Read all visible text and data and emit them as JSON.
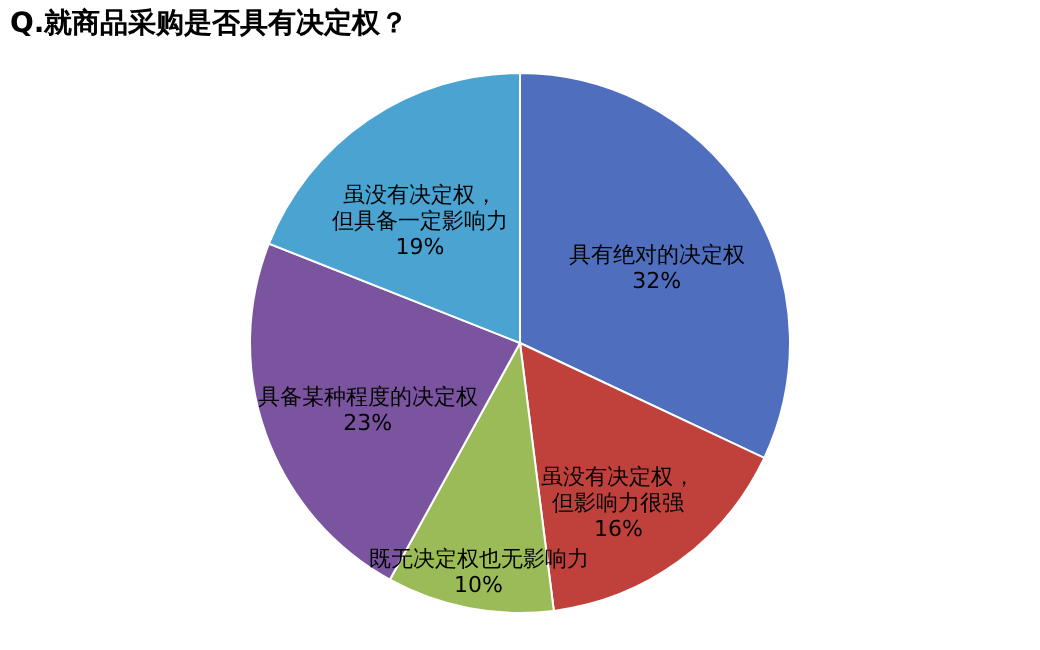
{
  "chart_data": {
    "type": "pie",
    "title": "Q.就商品采购是否具有决定权？",
    "categories": [
      "具有绝对的决定权",
      "虽没有决定权，但影响力很强",
      "既无决定权也无影响力",
      "具备某种程度的决定权",
      "虽没有决定权，但具备一定影响力"
    ],
    "values": [
      32,
      16,
      10,
      23,
      19
    ],
    "value_labels": [
      "32%",
      "16%",
      "10%",
      "23%",
      "19%"
    ],
    "colors": [
      "#4f6fbe",
      "#c0403c",
      "#9bbb59",
      "#7b549f",
      "#4aa3d0"
    ],
    "legend": false
  }
}
